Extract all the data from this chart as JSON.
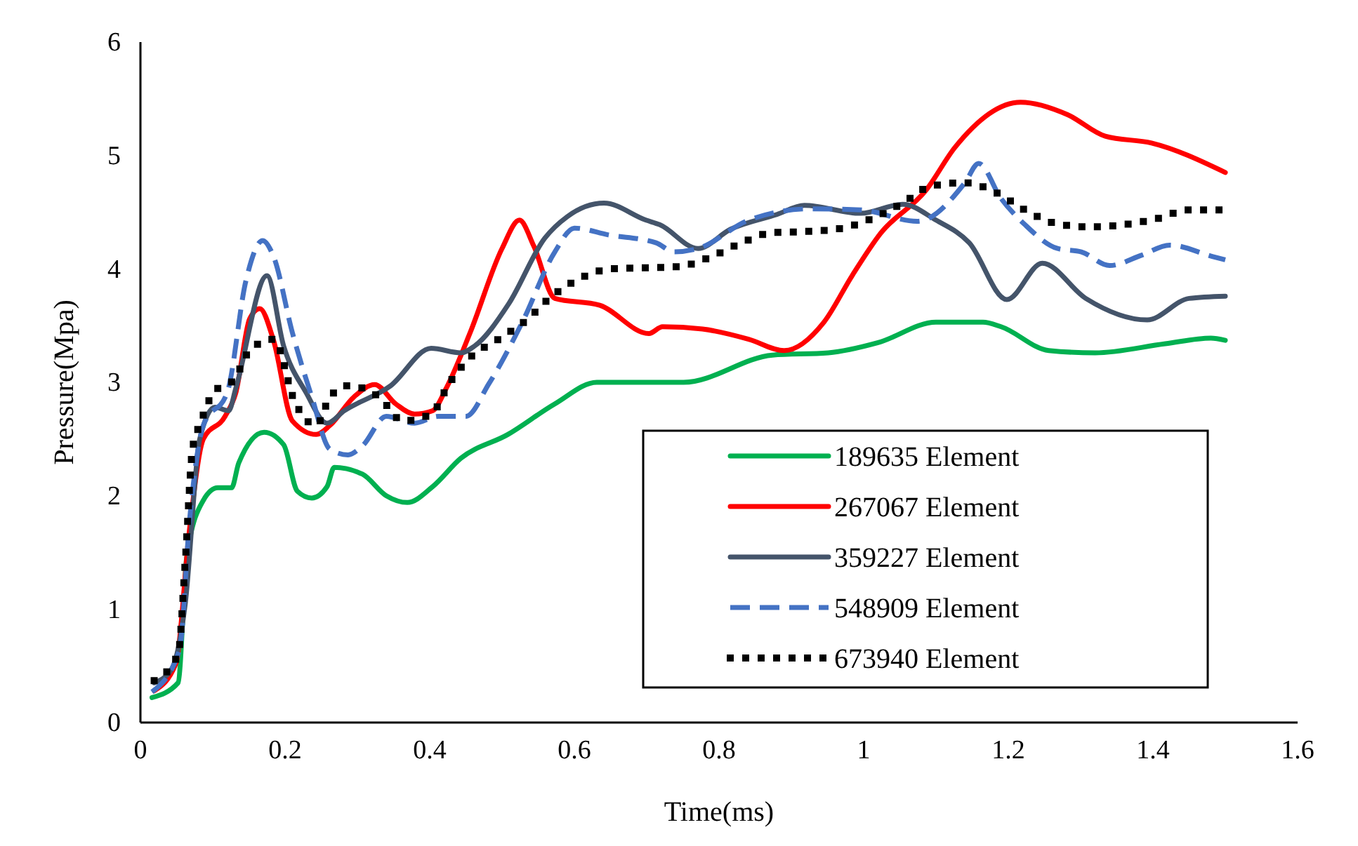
{
  "chart_data": {
    "type": "line",
    "xlabel": "Time(ms)",
    "ylabel": "Pressure(Mpa)",
    "xlim": [
      0,
      1.6
    ],
    "ylim": [
      0,
      6
    ],
    "xticks": [
      0,
      0.2,
      0.4,
      0.6,
      0.8,
      1,
      1.2,
      1.4,
      1.6
    ],
    "yticks": [
      0,
      1,
      2,
      3,
      4,
      5,
      6
    ],
    "grid": false,
    "legend": "bottom right",
    "marker": "none",
    "series": [
      {
        "name": "189635 Element",
        "color": "#00b050",
        "line_style": "solid",
        "x": [
          0.016,
          0.052,
          0.064,
          0.087,
          0.107,
          0.126,
          0.136,
          0.171,
          0.198,
          0.217,
          0.237,
          0.258,
          0.268,
          0.307,
          0.34,
          0.369,
          0.404,
          0.443,
          0.508,
          0.573,
          0.631,
          0.751,
          0.874,
          0.951,
          1.02,
          1.1,
          1.165,
          1.19,
          1.256,
          1.32,
          1.417,
          1.48,
          1.5
        ],
        "values": [
          0.22,
          0.35,
          1.46,
          1.96,
          2.07,
          2.07,
          2.29,
          2.56,
          2.45,
          2.04,
          1.98,
          2.08,
          2.25,
          2.19,
          2.0,
          1.94,
          2.08,
          2.33,
          2.54,
          2.81,
          3.0,
          3.0,
          3.24,
          3.26,
          3.35,
          3.53,
          3.53,
          3.49,
          3.28,
          3.26,
          3.34,
          3.39,
          3.37
        ]
      },
      {
        "name": "267067 Element",
        "color": "#ff0000",
        "line_style": "solid",
        "x": [
          0.019,
          0.049,
          0.068,
          0.087,
          0.117,
          0.132,
          0.151,
          0.165,
          0.184,
          0.21,
          0.243,
          0.262,
          0.295,
          0.324,
          0.353,
          0.379,
          0.404,
          0.423,
          0.456,
          0.5,
          0.524,
          0.544,
          0.573,
          0.635,
          0.703,
          0.722,
          0.777,
          0.841,
          0.89,
          0.945,
          0.984,
          1.023,
          1.087,
          1.126,
          1.217,
          1.282,
          1.334,
          1.398,
          1.5
        ],
        "values": [
          0.28,
          0.52,
          1.71,
          2.5,
          2.7,
          2.91,
          3.56,
          3.65,
          3.37,
          2.66,
          2.54,
          2.62,
          2.87,
          2.98,
          2.81,
          2.72,
          2.75,
          2.95,
          3.44,
          4.18,
          4.43,
          4.2,
          3.74,
          3.68,
          3.43,
          3.49,
          3.47,
          3.38,
          3.28,
          3.53,
          3.94,
          4.31,
          4.7,
          5.07,
          5.47,
          5.36,
          5.17,
          5.11,
          4.85
        ]
      },
      {
        "name": "359227 Element",
        "color": "#44546a",
        "line_style": "solid",
        "x": [
          0.019,
          0.043,
          0.062,
          0.082,
          0.103,
          0.122,
          0.132,
          0.175,
          0.198,
          0.229,
          0.258,
          0.282,
          0.346,
          0.402,
          0.443,
          0.462,
          0.509,
          0.559,
          0.59,
          0.641,
          0.699,
          0.718,
          0.771,
          0.816,
          0.88,
          0.918,
          0.996,
          1.054,
          1.1,
          1.146,
          1.198,
          1.247,
          1.307,
          1.392,
          1.45,
          1.5
        ],
        "values": [
          0.35,
          0.47,
          1.05,
          2.5,
          2.78,
          2.75,
          2.95,
          3.94,
          3.32,
          2.91,
          2.64,
          2.75,
          2.97,
          3.3,
          3.26,
          3.32,
          3.69,
          4.27,
          4.46,
          4.58,
          4.43,
          4.39,
          4.18,
          4.35,
          4.48,
          4.56,
          4.49,
          4.57,
          4.43,
          4.23,
          3.73,
          4.05,
          3.74,
          3.55,
          3.74,
          3.76
        ]
      },
      {
        "name": "548909 Element",
        "color": "#4472c4",
        "line_style": "dashed",
        "x": [
          0.016,
          0.054,
          0.068,
          0.087,
          0.12,
          0.146,
          0.169,
          0.184,
          0.21,
          0.237,
          0.262,
          0.287,
          0.307,
          0.34,
          0.379,
          0.412,
          0.45,
          0.482,
          0.528,
          0.573,
          0.6,
          0.647,
          0.713,
          0.738,
          0.771,
          0.841,
          0.926,
          0.996,
          1.074,
          1.14,
          1.159,
          1.19,
          1.223,
          1.268,
          1.301,
          1.34,
          1.384,
          1.423,
          1.482,
          1.5
        ],
        "values": [
          0.27,
          0.64,
          1.79,
          2.62,
          2.91,
          3.9,
          4.25,
          4.11,
          3.44,
          2.87,
          2.41,
          2.36,
          2.44,
          2.7,
          2.64,
          2.7,
          2.7,
          2.99,
          3.53,
          4.15,
          4.36,
          4.3,
          4.23,
          4.15,
          4.18,
          4.43,
          4.53,
          4.52,
          4.42,
          4.76,
          4.93,
          4.62,
          4.39,
          4.18,
          4.15,
          4.03,
          4.12,
          4.21,
          4.11,
          4.08
        ]
      },
      {
        "name": "673940 Element",
        "color": "#000000",
        "line_style": "dotted",
        "x": [
          0.019,
          0.052,
          0.062,
          0.072,
          0.083,
          0.101,
          0.13,
          0.151,
          0.184,
          0.214,
          0.243,
          0.262,
          0.287,
          0.33,
          0.363,
          0.402,
          0.427,
          0.456,
          0.495,
          0.534,
          0.567,
          0.606,
          0.65,
          0.699,
          0.744,
          0.79,
          0.831,
          0.874,
          0.922,
          0.971,
          1.01,
          1.054,
          1.093,
          1.14,
          1.184,
          1.223,
          1.266,
          1.314,
          1.359,
          1.404,
          1.45,
          1.5
        ],
        "values": [
          0.37,
          0.6,
          1.42,
          2.41,
          2.64,
          2.91,
          3.03,
          3.28,
          3.38,
          2.82,
          2.62,
          2.87,
          2.97,
          2.87,
          2.66,
          2.72,
          2.99,
          3.22,
          3.38,
          3.55,
          3.75,
          3.91,
          4.0,
          4.01,
          4.02,
          4.11,
          4.23,
          4.32,
          4.33,
          4.36,
          4.44,
          4.58,
          4.73,
          4.76,
          4.67,
          4.52,
          4.4,
          4.37,
          4.39,
          4.44,
          4.52,
          4.52
        ]
      }
    ]
  }
}
